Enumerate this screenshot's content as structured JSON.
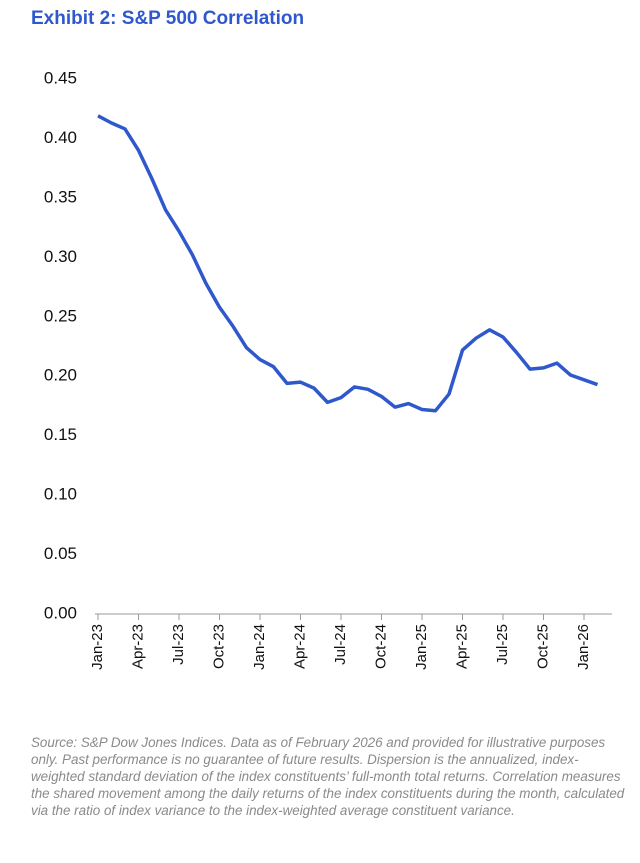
{
  "chart_data": {
    "type": "line",
    "title": "Exhibit 2: S&P 500 Correlation",
    "categories": [
      "Jan-23",
      null,
      null,
      "Apr-23",
      null,
      null,
      "Jul-23",
      null,
      null,
      "Oct-23",
      null,
      null,
      "Jan-24",
      null,
      null,
      "Apr-24",
      null,
      null,
      "Jul-24",
      null,
      null,
      "Oct-24",
      null,
      null,
      "Jan-25",
      null,
      null,
      "Apr-25",
      null,
      null,
      "Jul-25",
      null,
      null,
      "Oct-25",
      null,
      null,
      "Jan-26",
      null
    ],
    "series": [
      {
        "name": "S&P 500 Correlation",
        "color": "#2f58cd",
        "values": [
          0.419,
          0.413,
          0.408,
          0.39,
          0.366,
          0.34,
          0.322,
          0.302,
          0.278,
          0.258,
          0.242,
          0.224,
          0.214,
          0.208,
          0.194,
          0.195,
          0.19,
          0.178,
          0.182,
          0.191,
          0.189,
          0.183,
          0.174,
          0.177,
          0.172,
          0.171,
          0.185,
          0.222,
          0.232,
          0.239,
          0.233,
          0.22,
          0.206,
          0.207,
          0.211,
          0.201,
          0.197,
          0.193
        ]
      }
    ],
    "ylim": [
      0,
      0.45
    ],
    "yticks": [
      {
        "value": 0,
        "label": "0.00"
      },
      0.05,
      {
        "value": 0.1,
        "label": "0.10"
      },
      0.15,
      {
        "value": 0.2,
        "label": "0.20"
      },
      0.25,
      {
        "value": 0.3,
        "label": "0.30"
      },
      0.35,
      {
        "value": 0.4,
        "label": "0.40"
      },
      0.45
    ],
    "grid": false,
    "note": "Source: S&P Dow Jones Indices. Data as of February 2026 and provided for illustrative purposes only. Past performance is no guarantee of future results. Dispersion is the annualized, index-weighted standard deviation of the index constituents’ full-month total returns. Correlation measures the shared movement among the daily returns of the index constituents during the month, calculated via the ratio of index variance to the index-weighted average constituent variance."
  }
}
